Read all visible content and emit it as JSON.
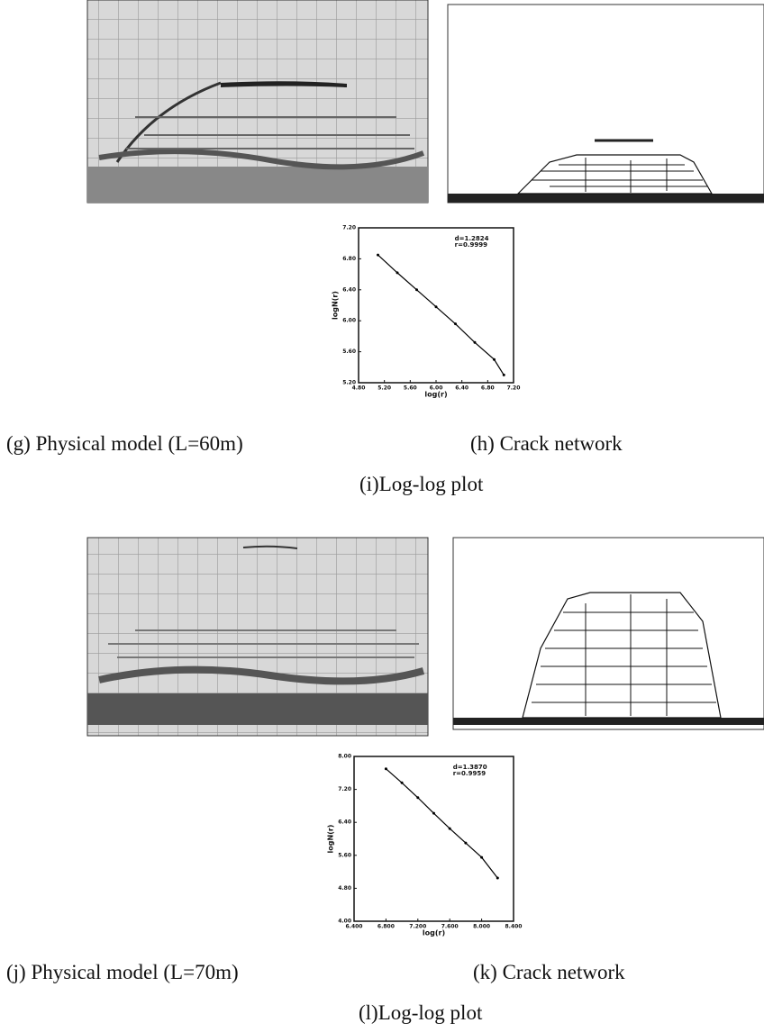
{
  "captions": {
    "g": "(g) Physical model (L=60m)",
    "h": "(h) Crack network",
    "i": "(i)Log-log plot",
    "j": "(j) Physical model (L=70m)",
    "k": "(k) Crack network",
    "l": "(l)Log-log plot"
  },
  "chart_data": [
    {
      "type": "line",
      "x_label": "log(r)",
      "y_label": "logN(r)",
      "annotations": [
        "d=1.2824",
        "r=0.9999"
      ],
      "x": [
        5.1,
        5.4,
        5.7,
        6.0,
        6.3,
        6.6,
        6.9,
        7.05
      ],
      "series": [
        {
          "name": "logN(r)",
          "color": "#000000",
          "values": [
            6.85,
            6.62,
            6.4,
            6.18,
            5.96,
            5.72,
            5.5,
            5.3
          ]
        }
      ],
      "xlim": [
        4.8,
        7.2
      ],
      "ylim": [
        5.2,
        7.2
      ],
      "xticks": [
        {
          "value": 4.8,
          "label": "4.80"
        },
        {
          "value": 5.2,
          "label": "5.20"
        },
        {
          "value": 5.6,
          "label": "5.60"
        },
        {
          "value": 6.0,
          "label": "6.00"
        },
        {
          "value": 6.4,
          "label": "6.40"
        },
        {
          "value": 6.8,
          "label": "6.80"
        },
        {
          "value": 7.2,
          "label": "7.20"
        }
      ],
      "yticks": [
        {
          "value": 5.2,
          "label": "5.20"
        },
        {
          "value": 5.6,
          "label": "5.60"
        },
        {
          "value": 6.0,
          "label": "6.00"
        },
        {
          "value": 6.4,
          "label": "6.40"
        },
        {
          "value": 6.8,
          "label": "6.80"
        },
        {
          "value": 7.2,
          "label": "7.20"
        }
      ]
    },
    {
      "type": "line",
      "x_label": "log(r)",
      "y_label": "logN(r)",
      "annotations": [
        "d=1.3870",
        "r=0.9959"
      ],
      "x": [
        6.8,
        7.0,
        7.2,
        7.4,
        7.6,
        7.8,
        8.0,
        8.2
      ],
      "series": [
        {
          "name": "logN(r)",
          "color": "#000000",
          "values": [
            7.7,
            7.36,
            7.0,
            6.62,
            6.25,
            5.9,
            5.55,
            5.05
          ]
        }
      ],
      "xlim": [
        6.4,
        8.4
      ],
      "ylim": [
        4.0,
        8.0
      ],
      "xticks": [
        {
          "value": 6.4,
          "label": "6.400"
        },
        {
          "value": 6.8,
          "label": "6.800"
        },
        {
          "value": 7.2,
          "label": "7.200"
        },
        {
          "value": 7.6,
          "label": "7.600"
        },
        {
          "value": 8.0,
          "label": "8.000"
        },
        {
          "value": 8.4,
          "label": "8.400"
        }
      ],
      "yticks": [
        {
          "value": 4.0,
          "label": "4.00"
        },
        {
          "value": 4.8,
          "label": "4.80"
        },
        {
          "value": 5.6,
          "label": "5.60"
        },
        {
          "value": 6.4,
          "label": "6.40"
        },
        {
          "value": 7.2,
          "label": "7.20"
        },
        {
          "value": 8.0,
          "label": "8.00"
        }
      ]
    }
  ]
}
